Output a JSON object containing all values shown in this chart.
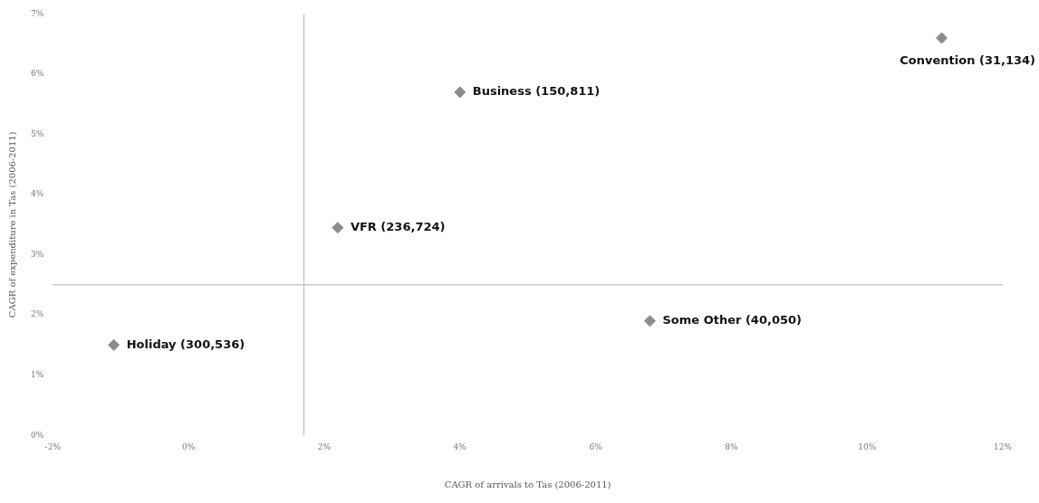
{
  "chart_data": {
    "type": "scatter",
    "xlabel": "CAGR of arrivals to Tas (2006-2011)",
    "ylabel": "CAGR of expenditure in Tas (2006-2011)",
    "series": [
      {
        "color": "#8c8c8c",
        "x": [
          -1.1,
          2.2,
          4.0,
          11.1,
          6.8
        ],
        "values": [
          1.5,
          3.45,
          5.7,
          6.6,
          1.9
        ]
      }
    ],
    "marker": "diamond",
    "grid": false,
    "legend": false,
    "xlim": [
      -2,
      12
    ],
    "xticks": [
      {
        "value": -2,
        "label": "-2%"
      },
      {
        "value": 0,
        "label": "0%"
      },
      {
        "value": 2,
        "label": "2%"
      },
      {
        "value": 4,
        "label": "4%"
      },
      {
        "value": 6,
        "label": "6%"
      },
      {
        "value": 8,
        "label": "8%"
      },
      {
        "value": 10,
        "label": "10%"
      },
      {
        "value": 12,
        "label": "12%"
      }
    ],
    "ylim": [
      0,
      7
    ],
    "yticks": [
      {
        "value": 0,
        "label": "0%"
      },
      {
        "value": 1,
        "label": "1%"
      },
      {
        "value": 2,
        "label": "2%"
      },
      {
        "value": 3,
        "label": "3%"
      },
      {
        "value": 4,
        "label": "4%"
      },
      {
        "value": 5,
        "label": "5%"
      },
      {
        "value": 6,
        "label": "6%"
      },
      {
        "value": 7,
        "label": "7%"
      }
    ],
    "ref_lines": [
      {
        "axis": "x",
        "value": 1.7,
        "color": "#c8c8c8"
      },
      {
        "axis": "y",
        "value": 2.5,
        "color": "#c8c8c8"
      }
    ],
    "annotations": [
      {
        "text": "Holiday (300,536)",
        "x": -1.1,
        "y": 1.5
      },
      {
        "text": "VFR (236,724)",
        "x": 2.2,
        "y": 3.45
      },
      {
        "text": "Business (150,811)",
        "x": 4.0,
        "y": 5.7
      },
      {
        "text": "Convention (31,134)",
        "x": 11.1,
        "y": 6.6
      },
      {
        "text": "Some Other (40,050)",
        "x": 6.8,
        "y": 1.9
      }
    ]
  }
}
